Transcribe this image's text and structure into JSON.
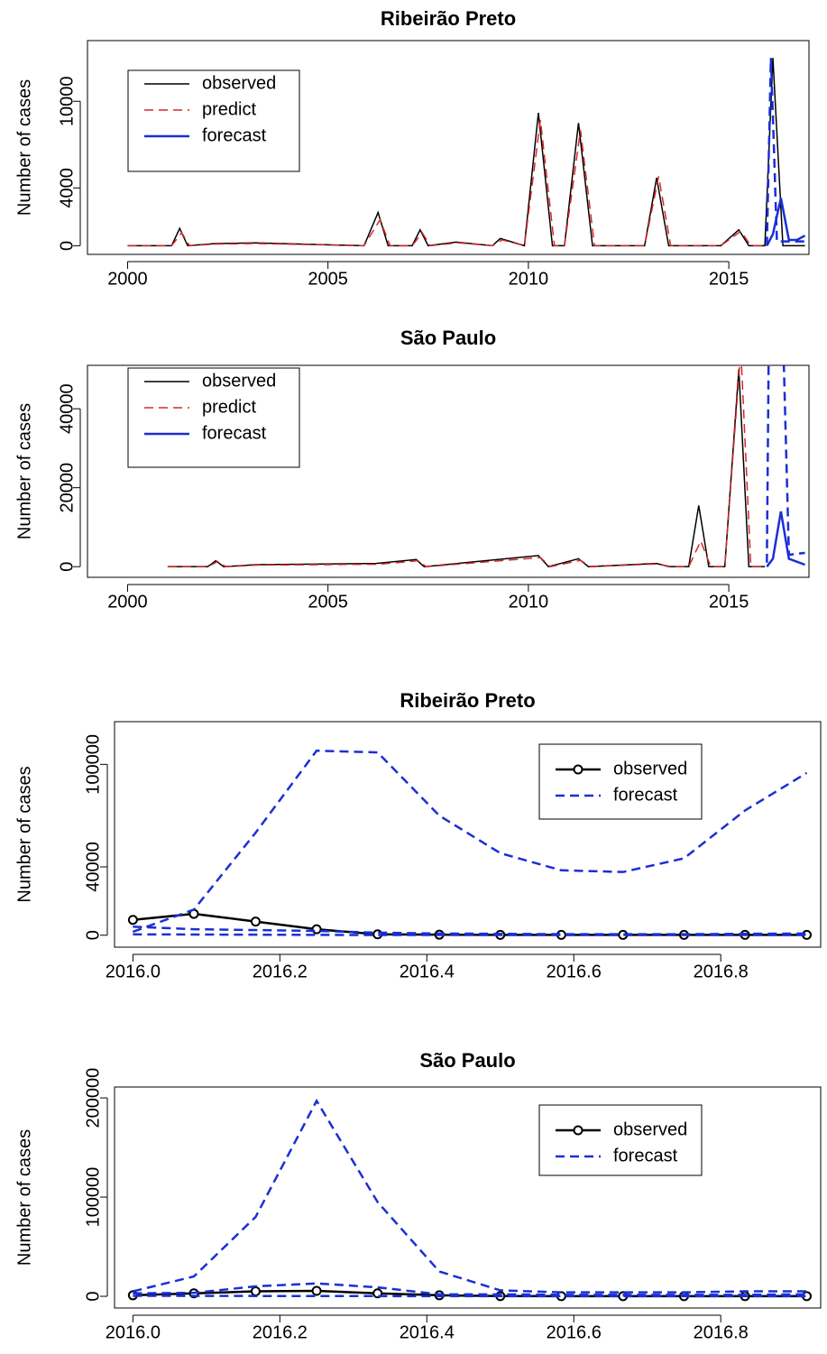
{
  "chart_data": [
    {
      "type": "line",
      "title": "Ribeirão Preto",
      "ylabel": "Number of cases",
      "xlim": [
        1999,
        2017
      ],
      "xticks": [
        2000,
        2005,
        2010,
        2015
      ],
      "ylim": [
        -600,
        14200
      ],
      "yticks": [
        0,
        4000,
        10000
      ],
      "legend": "topleft",
      "series": [
        {
          "name": "observed",
          "color": "#000000",
          "dash": false,
          "width": 1.5,
          "x": [
            2000,
            2001.1,
            2001.3,
            2001.5,
            2002.2,
            2003.2,
            2005.9,
            2006.25,
            2006.5,
            2007.1,
            2007.3,
            2007.5,
            2008.2,
            2009.1,
            2009.3,
            2009.9,
            2010.25,
            2010.6,
            2010.9,
            2011.25,
            2011.6,
            2012.9,
            2013.2,
            2013.5,
            2014.8,
            2015.25,
            2015.5,
            2015.9,
            2016.1,
            2016.35,
            2016.6,
            2016.9
          ],
          "values": [
            0,
            0,
            1200,
            0,
            150,
            200,
            0,
            2300,
            0,
            0,
            1100,
            0,
            250,
            0,
            500,
            0,
            9200,
            0,
            0,
            8500,
            0,
            0,
            4700,
            0,
            0,
            1100,
            0,
            0,
            13000,
            0,
            0,
            0
          ]
        },
        {
          "name": "predict",
          "color": "#d62728",
          "dash": true,
          "width": 1.5,
          "x": [
            2000,
            2001.1,
            2001.35,
            2001.55,
            2002.25,
            2003.25,
            2005.9,
            2006.3,
            2006.55,
            2007.1,
            2007.35,
            2007.55,
            2008.25,
            2009.1,
            2009.35,
            2009.9,
            2010.3,
            2010.65,
            2010.9,
            2011.3,
            2011.65,
            2012.9,
            2013.25,
            2013.55,
            2014.8,
            2015.3,
            2015.55,
            2015.9
          ],
          "values": [
            0,
            0,
            900,
            0,
            120,
            150,
            0,
            1800,
            0,
            0,
            900,
            0,
            200,
            0,
            400,
            0,
            8700,
            0,
            0,
            8000,
            0,
            0,
            4800,
            0,
            0,
            1000,
            0,
            0
          ]
        },
        {
          "name": "forecast",
          "color": "#1a2fd6",
          "dash": false,
          "width": 2.5,
          "x": [
            2015.95,
            2016.1,
            2016.3,
            2016.5,
            2016.7,
            2016.9
          ],
          "values": [
            0,
            800,
            3300,
            400,
            400,
            700
          ]
        },
        {
          "color": "#1a2fd6",
          "dash": true,
          "width": 2.5,
          "x": [
            2015.95,
            2016.05,
            2016.1,
            2016.2,
            2016.35,
            2016.9
          ],
          "values": [
            0,
            13000,
            9000,
            300,
            300,
            300
          ]
        }
      ]
    },
    {
      "type": "line",
      "title": "São Paulo",
      "ylabel": "Number of cases",
      "xlim": [
        1999,
        2017
      ],
      "xticks": [
        2000,
        2005,
        2010,
        2015
      ],
      "ylim": [
        -2700,
        51000
      ],
      "yticks": [
        0,
        20000,
        40000
      ],
      "legend": "topleft",
      "series": [
        {
          "name": "observed",
          "color": "#000000",
          "dash": false,
          "width": 1.5,
          "x": [
            2001,
            2002,
            2002.2,
            2002.4,
            2003.2,
            2006.2,
            2007.2,
            2007.4,
            2010.25,
            2010.5,
            2011.25,
            2011.5,
            2013.2,
            2013.5,
            2014,
            2014.25,
            2014.5,
            2014.9,
            2015.25,
            2015.5,
            2015.9
          ],
          "values": [
            0,
            0,
            1500,
            0,
            500,
            800,
            1800,
            0,
            2800,
            0,
            2000,
            0,
            800,
            0,
            0,
            15500,
            0,
            0,
            50000,
            0,
            0
          ]
        },
        {
          "name": "predict",
          "color": "#d62728",
          "dash": true,
          "width": 1.5,
          "x": [
            2001,
            2002,
            2002.25,
            2002.45,
            2003.25,
            2006.25,
            2007.25,
            2007.45,
            2010.3,
            2010.55,
            2011.3,
            2011.55,
            2013.25,
            2013.55,
            2014,
            2014.3,
            2014.55,
            2014.9,
            2015.3,
            2015.55,
            2015.9
          ],
          "values": [
            0,
            0,
            1300,
            0,
            400,
            600,
            1500,
            0,
            2300,
            0,
            1600,
            0,
            700,
            0,
            0,
            6500,
            0,
            0,
            55000,
            0,
            0
          ]
        },
        {
          "name": "forecast",
          "color": "#1a2fd6",
          "dash": false,
          "width": 2.5,
          "x": [
            2015.95,
            2016.1,
            2016.3,
            2016.5,
            2016.9
          ],
          "values": [
            0,
            2000,
            14000,
            2000,
            500
          ]
        },
        {
          "color": "#1a2fd6",
          "dash": true,
          "width": 2.5,
          "x": [
            2015.95,
            2016,
            2016.15,
            2016.35,
            2016.5,
            2016.9
          ],
          "values": [
            1000,
            60000,
            70000,
            60000,
            3000,
            3500
          ]
        }
      ]
    },
    {
      "type": "line",
      "title": "Ribeirão Preto",
      "ylabel": "Number of cases",
      "xlim": [
        2015.975,
        2016.936
      ],
      "xticks": [
        {
          "value": 2016,
          "label": "2016.0"
        },
        2016.2,
        2016.4,
        2016.6,
        2016.8
      ],
      "ylim": [
        -7000,
        125000
      ],
      "yticks": [
        0,
        40000,
        100000
      ],
      "legend": "topright",
      "x": [
        2016,
        2016.083,
        2016.167,
        2016.25,
        2016.333,
        2016.417,
        2016.5,
        2016.583,
        2016.667,
        2016.75,
        2016.833,
        2016.917
      ],
      "series": [
        {
          "name": "observed",
          "color": "#000000",
          "dash": false,
          "width": 2.5,
          "marker": "circle",
          "values": [
            9000,
            12500,
            8000,
            3500,
            500,
            300,
            200,
            200,
            200,
            200,
            200,
            200
          ]
        },
        {
          "name": "forecast",
          "color": "#1a2fd6",
          "dash": true,
          "width": 2.5,
          "values": [
            5000,
            3500,
            3000,
            2500,
            1500,
            1000,
            800,
            600,
            600,
            600,
            800,
            1000
          ]
        },
        {
          "color": "#1a2fd6",
          "dash": true,
          "width": 2.5,
          "values": [
            2000,
            15000,
            60000,
            108000,
            107000,
            70000,
            48000,
            38000,
            37000,
            45000,
            73000,
            95000
          ]
        },
        {
          "color": "#1a2fd6",
          "dash": true,
          "width": 2.5,
          "values": [
            500,
            400,
            300,
            200,
            100,
            100,
            100,
            100,
            100,
            100,
            100,
            100
          ]
        }
      ]
    },
    {
      "type": "line",
      "title": "São Paulo",
      "ylabel": "Number of cases",
      "xlim": [
        2015.975,
        2016.936
      ],
      "xticks": [
        {
          "value": 2016,
          "label": "2016.0"
        },
        2016.2,
        2016.4,
        2016.6,
        2016.8
      ],
      "ylim": [
        -11800,
        211000
      ],
      "yticks": [
        0,
        100000,
        200000
      ],
      "legend": "topright",
      "x": [
        2016,
        2016.083,
        2016.167,
        2016.25,
        2016.333,
        2016.417,
        2016.5,
        2016.583,
        2016.667,
        2016.75,
        2016.833,
        2016.917
      ],
      "series": [
        {
          "name": "observed",
          "color": "#000000",
          "dash": false,
          "width": 2.5,
          "marker": "circle",
          "values": [
            1000,
            3000,
            5000,
            5500,
            3000,
            1000,
            200,
            100,
            100,
            100,
            100,
            100
          ]
        },
        {
          "name": "forecast",
          "color": "#1a2fd6",
          "dash": true,
          "width": 2.5,
          "values": [
            3000,
            3500,
            10000,
            13000,
            9000,
            2000,
            2000,
            1500,
            1500,
            1500,
            1500,
            2000
          ]
        },
        {
          "color": "#1a2fd6",
          "dash": true,
          "width": 2.5,
          "values": [
            5000,
            20000,
            80000,
            197000,
            95000,
            25000,
            6000,
            4000,
            4000,
            4000,
            5000,
            5000
          ]
        },
        {
          "color": "#1a2fd6",
          "dash": true,
          "width": 2.5,
          "values": [
            500,
            400,
            300,
            300,
            200,
            100,
            100,
            100,
            100,
            100,
            100,
            100
          ]
        }
      ]
    }
  ]
}
